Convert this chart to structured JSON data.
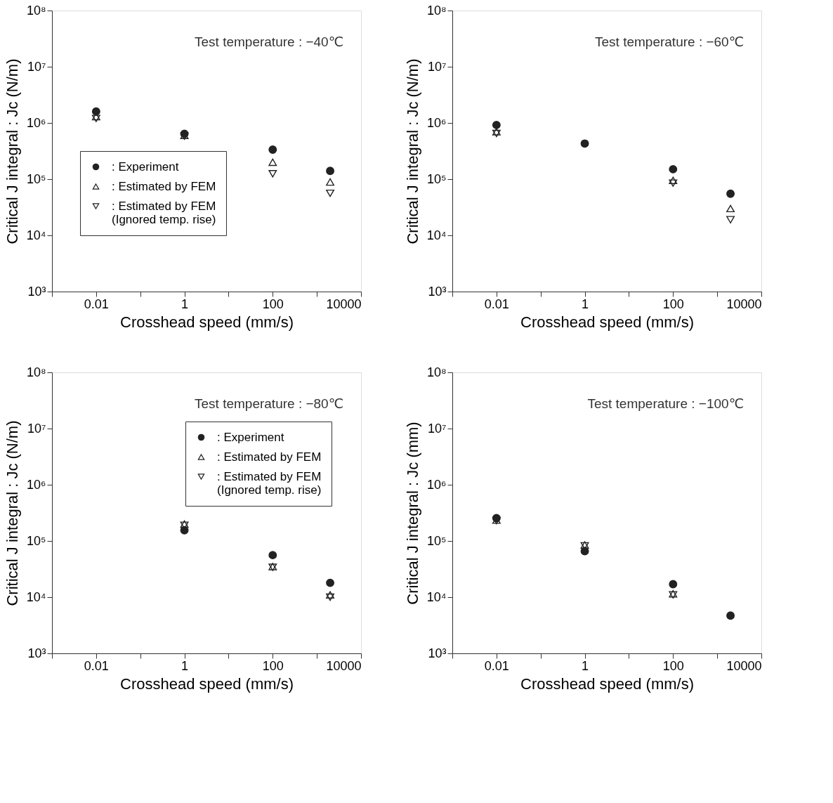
{
  "chart_data": [
    {
      "type": "scatter",
      "title": "Test  temperature : −40℃",
      "xlabel": "Crosshead  speed (mm/s)",
      "ylabel": "Critical J integral : Jc (N/m)",
      "log": "xy",
      "grid": false,
      "legend": "bottom left",
      "xlim": [
        0.001,
        10000
      ],
      "xticks": [
        {
          "value": 0.001,
          "label": null
        },
        0.01,
        {
          "value": 0.1,
          "label": null
        },
        1,
        {
          "value": 10,
          "label": null
        },
        100,
        {
          "value": 1000,
          "label": null
        },
        10000
      ],
      "ylim": [
        1000,
        100000000
      ],
      "yticks": [
        {
          "value": 1000,
          "label": "10³"
        },
        {
          "value": 10000,
          "label": "10⁴"
        },
        {
          "value": 100000,
          "label": "10⁵"
        },
        {
          "value": 1000000,
          "label": "10⁶"
        },
        {
          "value": 10000000,
          "label": "10⁷"
        },
        {
          "value": 100000000,
          "label": "10⁸"
        }
      ],
      "x": [
        0.01,
        1,
        100,
        2000
      ],
      "series": [
        {
          "name": ": Experiment",
          "color": "#222222",
          "marker": "circle",
          "values": [
            1600000,
            640000,
            335000,
            140000
          ]
        },
        {
          "name": ": Estimated by FEM",
          "color": "#222222",
          "marker": "triangle",
          "values": [
            1300000,
            600000,
            200000,
            89000
          ]
        },
        {
          "name": ": Estimated by FEM\n(Ignored temp. rise)",
          "color": "#222222",
          "marker": "triangle-down",
          "values": [
            1200000,
            580000,
            125000,
            56000
          ]
        }
      ]
    },
    {
      "type": "scatter",
      "title": "Test  temperature : −60℃",
      "xlabel": "Crosshead  speed (mm/s)",
      "ylabel": "Critical J integral : Jc (N/m)",
      "log": "xy",
      "grid": false,
      "legend": "bottom left",
      "xlim": [
        0.001,
        10000
      ],
      "xticks": [
        {
          "value": 0.001,
          "label": null
        },
        0.01,
        {
          "value": 0.1,
          "label": null
        },
        1,
        {
          "value": 10,
          "label": null
        },
        100,
        {
          "value": 1000,
          "label": null
        },
        10000
      ],
      "ylim": [
        1000,
        100000000
      ],
      "yticks": [
        {
          "value": 1000,
          "label": "10³"
        },
        {
          "value": 10000,
          "label": "10⁴"
        },
        {
          "value": 100000,
          "label": "10⁵"
        },
        {
          "value": 1000000,
          "label": "10⁶"
        },
        {
          "value": 10000000,
          "label": "10⁷"
        },
        {
          "value": 100000000,
          "label": "10⁸"
        }
      ],
      "x": [
        0.01,
        1,
        100,
        2000
      ],
      "series": [
        {
          "name": ": Experiment",
          "color": "#222222",
          "marker": "circle",
          "values": [
            920000,
            430000,
            150000,
            55000
          ]
        },
        {
          "name": ": Estimated by FEM",
          "color": "#222222",
          "marker": "triangle",
          "values": [
            700000,
            null,
            95000,
            30000
          ]
        },
        {
          "name": ": Estimated by FEM\n(Ignored temp. rise)",
          "color": "#222222",
          "marker": "triangle-down",
          "values": [
            650000,
            null,
            85000,
            19000
          ]
        }
      ]
    },
    {
      "type": "scatter",
      "title": "Test  temperature : −80℃",
      "xlabel": "Crosshead  speed (mm/s)",
      "ylabel": "Critical J integral : Jc (N/m)",
      "log": "xy",
      "grid": false,
      "legend": "top right",
      "xlim": [
        0.001,
        10000
      ],
      "xticks": [
        {
          "value": 0.001,
          "label": null
        },
        0.01,
        {
          "value": 0.1,
          "label": null
        },
        1,
        {
          "value": 10,
          "label": null
        },
        100,
        {
          "value": 1000,
          "label": null
        },
        10000
      ],
      "ylim": [
        1000,
        100000000
      ],
      "yticks": [
        {
          "value": 1000,
          "label": "10³"
        },
        {
          "value": 10000,
          "label": "10⁴"
        },
        {
          "value": 100000,
          "label": "10⁵"
        },
        {
          "value": 1000000,
          "label": "10⁶"
        },
        {
          "value": 10000000,
          "label": "10⁷"
        },
        {
          "value": 100000000,
          "label": "10⁸"
        }
      ],
      "x": [
        1,
        100,
        2000
      ],
      "series": [
        {
          "name": ": Experiment",
          "color": "#222222",
          "marker": "circle",
          "values": [
            155000,
            56000,
            18000
          ]
        },
        {
          "name": ": Estimated by FEM",
          "color": "#222222",
          "marker": "triangle",
          "values": [
            200000,
            35000,
            11000
          ]
        },
        {
          "name": ": Estimated by FEM\n(Ignored temp. rise)",
          "color": "#222222",
          "marker": "triangle-down",
          "values": [
            190000,
            34000,
            10000
          ]
        }
      ]
    },
    {
      "type": "scatter",
      "title": "Test  temperature : −100℃",
      "xlabel": "Crosshead  speed (mm/s)",
      "ylabel": "Critical J integral : Jc (mm)",
      "log": "xy",
      "grid": false,
      "legend": "top right",
      "xlim": [
        0.001,
        10000
      ],
      "xticks": [
        {
          "value": 0.001,
          "label": null
        },
        0.01,
        {
          "value": 0.1,
          "label": null
        },
        1,
        {
          "value": 10,
          "label": null
        },
        100,
        {
          "value": 1000,
          "label": null
        },
        10000
      ],
      "ylim": [
        1000,
        100000000
      ],
      "yticks": [
        {
          "value": 1000,
          "label": "10³"
        },
        {
          "value": 10000,
          "label": "10⁴"
        },
        {
          "value": 100000,
          "label": "10⁵"
        },
        {
          "value": 1000000,
          "label": "10⁶"
        },
        {
          "value": 10000000,
          "label": "10⁷"
        },
        {
          "value": 100000000,
          "label": "10⁸"
        }
      ],
      "x": [
        0.01,
        1,
        100,
        2000
      ],
      "series": [
        {
          "name": ": Experiment",
          "color": "#222222",
          "marker": "circle",
          "values": [
            255000,
            66000,
            17000,
            4700
          ]
        },
        {
          "name": ": Estimated by FEM",
          "color": "#222222",
          "marker": "triangle",
          "values": [
            235000,
            85000,
            11500,
            null
          ]
        },
        {
          "name": ": Estimated by FEM\n(Ignored temp. rise)",
          "color": "#222222",
          "marker": "triangle-down",
          "values": [
            230000,
            82000,
            11000,
            null
          ]
        }
      ]
    }
  ]
}
